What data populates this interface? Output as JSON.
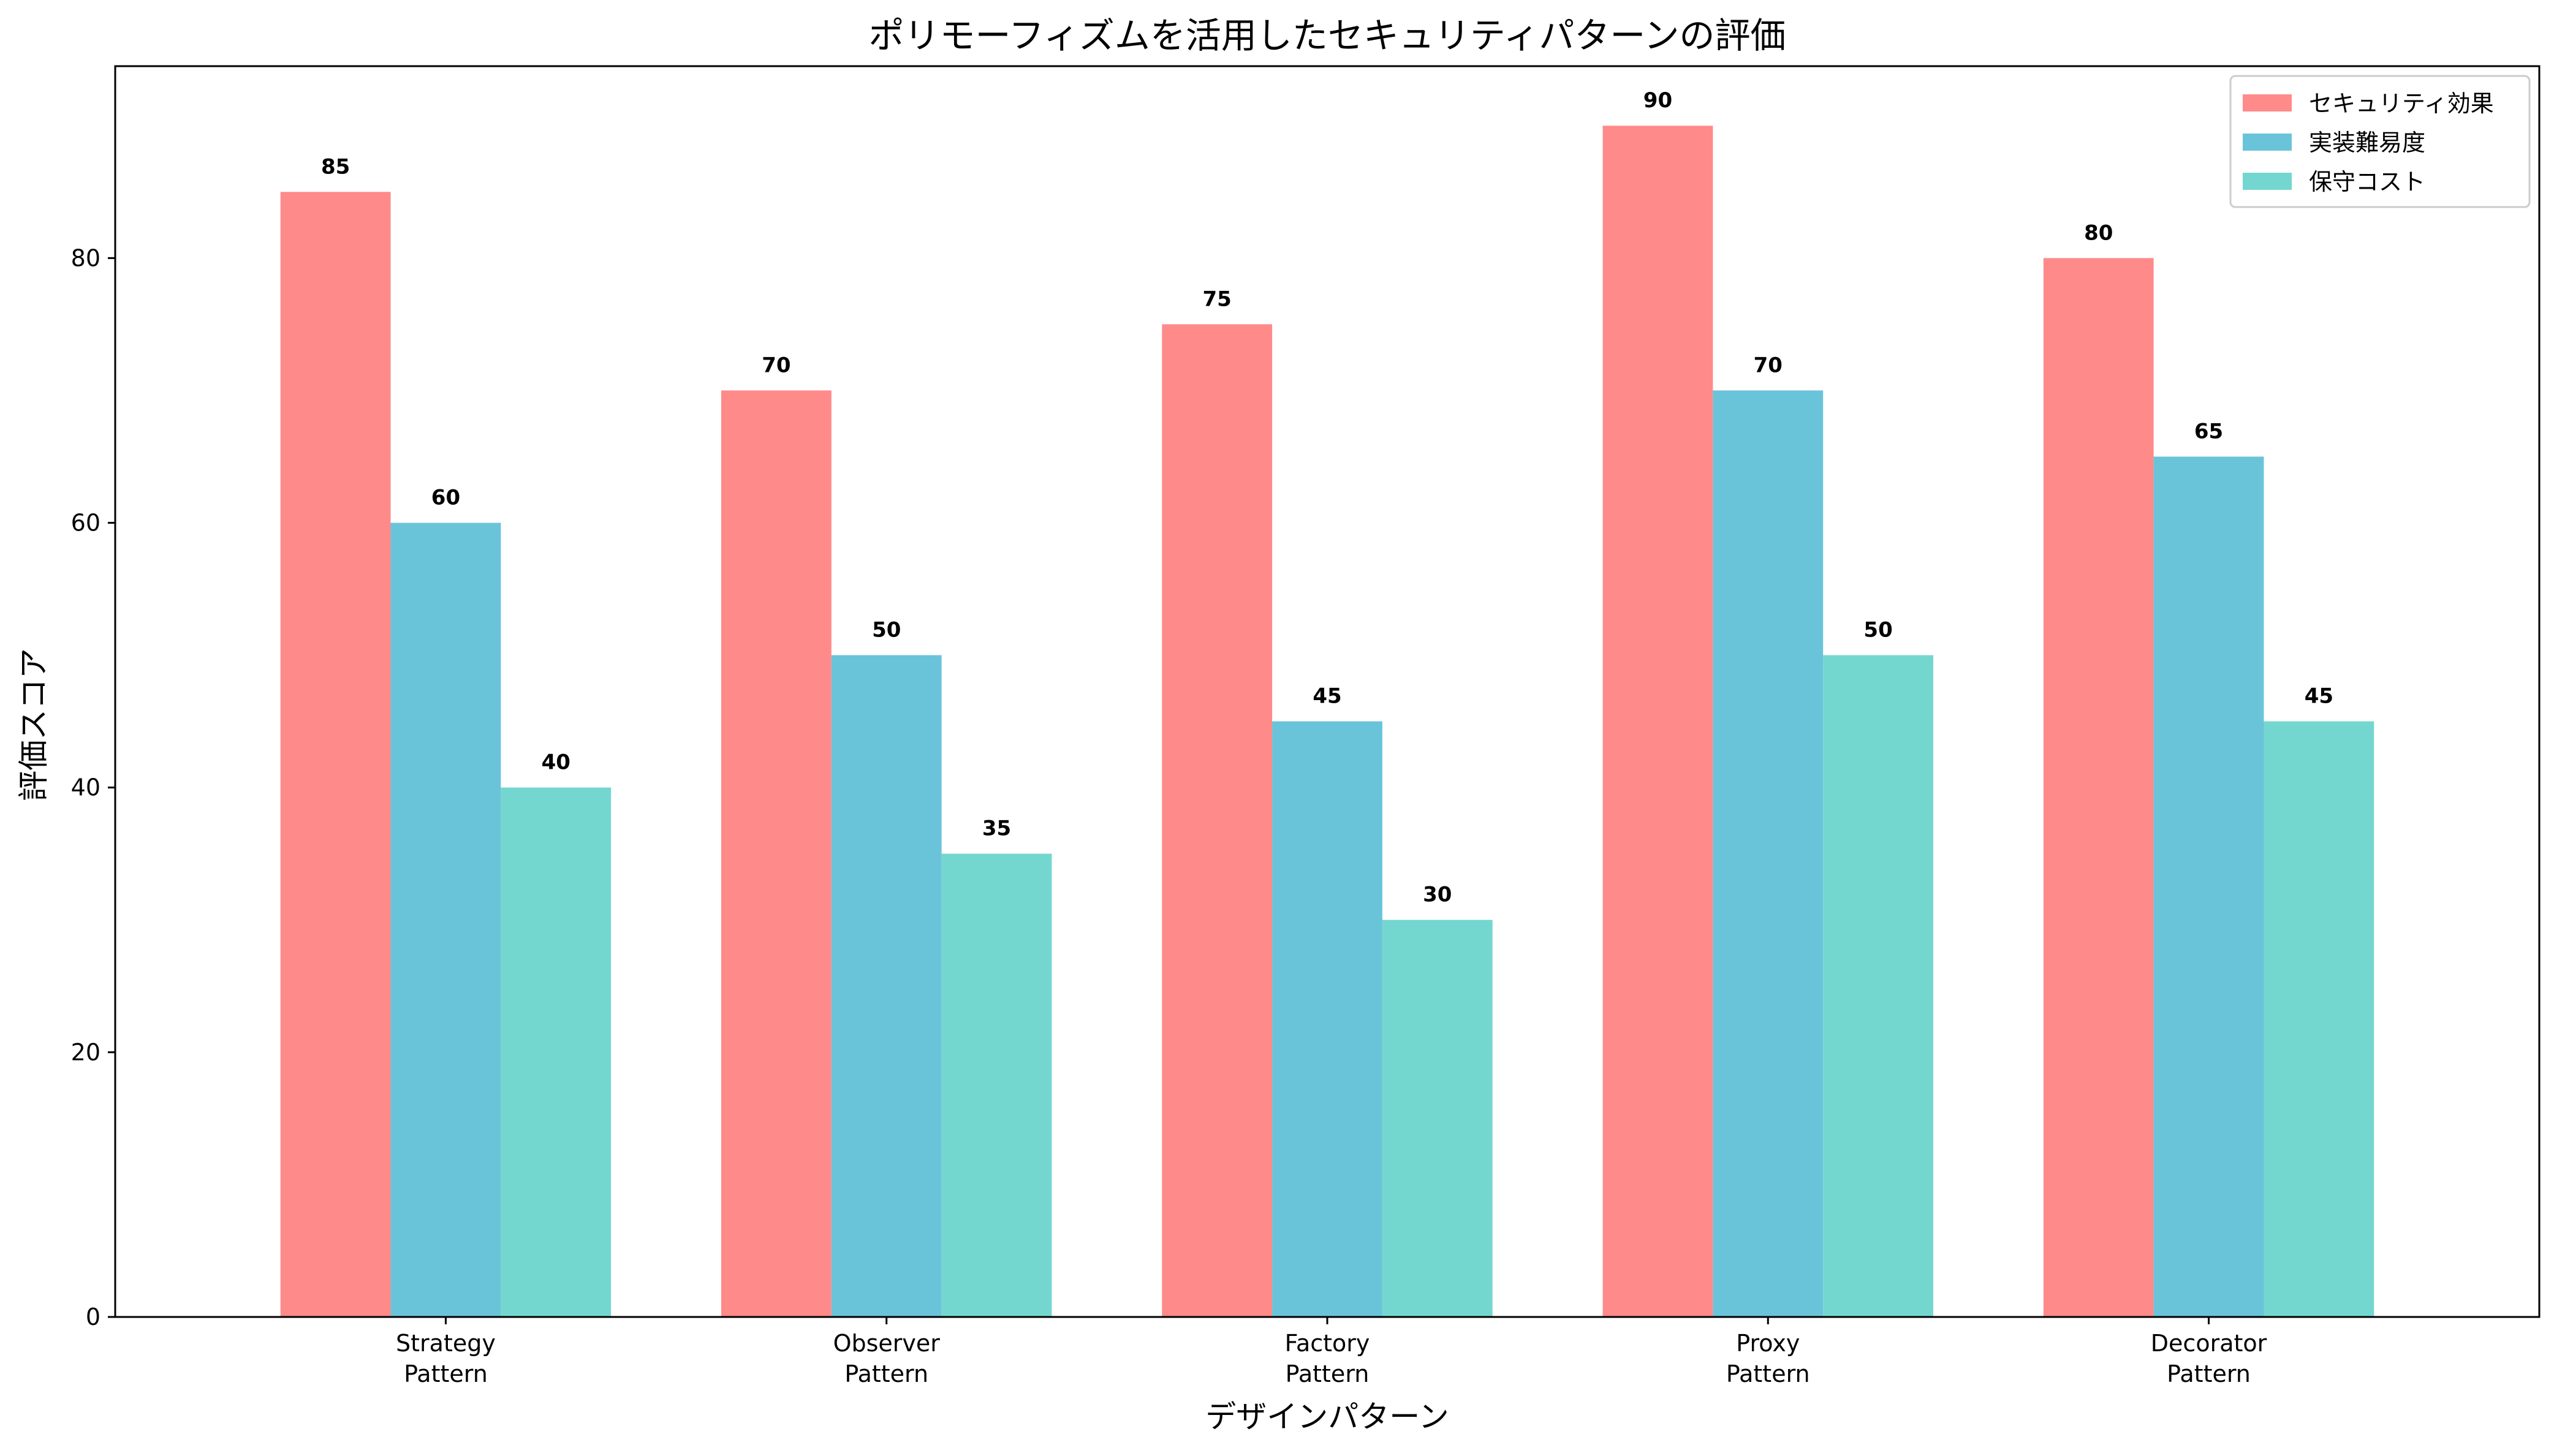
{
  "chart_data": {
    "type": "bar",
    "title": "ポリモーフィズムを活用したセキュリティパターンの評価",
    "xlabel": "デザインパターン",
    "ylabel": "評価スコア",
    "categories": [
      [
        "Strategy",
        "Pattern"
      ],
      [
        "Observer",
        "Pattern"
      ],
      [
        "Factory",
        "Pattern"
      ],
      [
        "Proxy",
        "Pattern"
      ],
      [
        "Decorator",
        "Pattern"
      ]
    ],
    "series": [
      {
        "name": "セキュリティ効果",
        "color": "#FF8A8A",
        "values": [
          85,
          70,
          75,
          90,
          80
        ]
      },
      {
        "name": "実装難易度",
        "color": "#6AC4D9",
        "values": [
          60,
          50,
          45,
          70,
          65
        ]
      },
      {
        "name": "保守コスト",
        "color": "#74D7CF",
        "values": [
          40,
          35,
          30,
          50,
          45
        ]
      }
    ],
    "ylim": [
      0,
      94.5
    ],
    "yticks": [
      0,
      20,
      40,
      60,
      80
    ],
    "grid": false,
    "legend_position": "top-right"
  }
}
